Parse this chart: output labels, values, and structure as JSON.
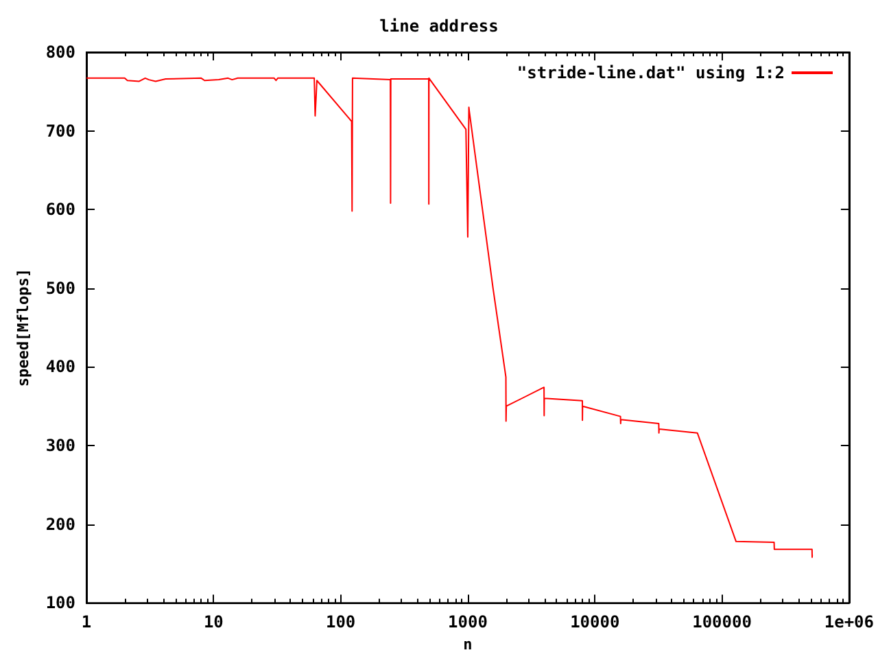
{
  "chart_data": {
    "type": "line",
    "title": "line address",
    "xlabel": "n",
    "ylabel": "speed[Mflops]",
    "log": "x",
    "xlim": [
      1,
      1000000
    ],
    "xticks": [
      1,
      10,
      100,
      1000,
      10000,
      100000,
      {
        "value": 1000000,
        "label": "1e+06"
      }
    ],
    "ylim": [
      100,
      800
    ],
    "yticks": [
      100,
      200,
      300,
      400,
      500,
      600,
      700,
      800
    ],
    "grid": false,
    "legend": "top right",
    "marker": "none",
    "line_style": "solid",
    "series": [
      {
        "name": "\"stride-line.dat\" using 1:2",
        "color": "#ff0000",
        "x": [
          1,
          2,
          2.1,
          2.6,
          2.9,
          3.1,
          3.5,
          4.2,
          8,
          8.5,
          11,
          13,
          14,
          15.5,
          30,
          31,
          32,
          62,
          63,
          64,
          65,
          122,
          123,
          124,
          246,
          247,
          248,
          493,
          494,
          495,
          967,
          1000,
          1020,
          1030,
          1580,
          1995,
          2000,
          2010,
          3980,
          3990,
          4000,
          7970,
          7980,
          8000,
          15900,
          15950,
          16000,
          31800,
          31900,
          32000,
          64000,
          129000,
          257000,
          258000,
          511000,
          512000,
          513000
        ],
        "values": [
          767,
          767,
          764,
          763,
          767,
          765,
          763,
          766,
          767,
          764,
          765,
          767,
          765,
          767,
          767,
          764,
          767,
          767,
          719,
          741,
          764,
          712,
          598,
          767,
          765,
          608,
          766,
          766,
          607,
          767,
          702,
          565,
          730,
          724,
          500,
          387,
          331,
          350,
          374,
          338,
          360,
          357,
          332,
          350,
          337,
          328,
          333,
          328,
          316,
          321,
          316,
          178,
          177,
          168,
          168,
          158,
          161
        ]
      }
    ]
  }
}
